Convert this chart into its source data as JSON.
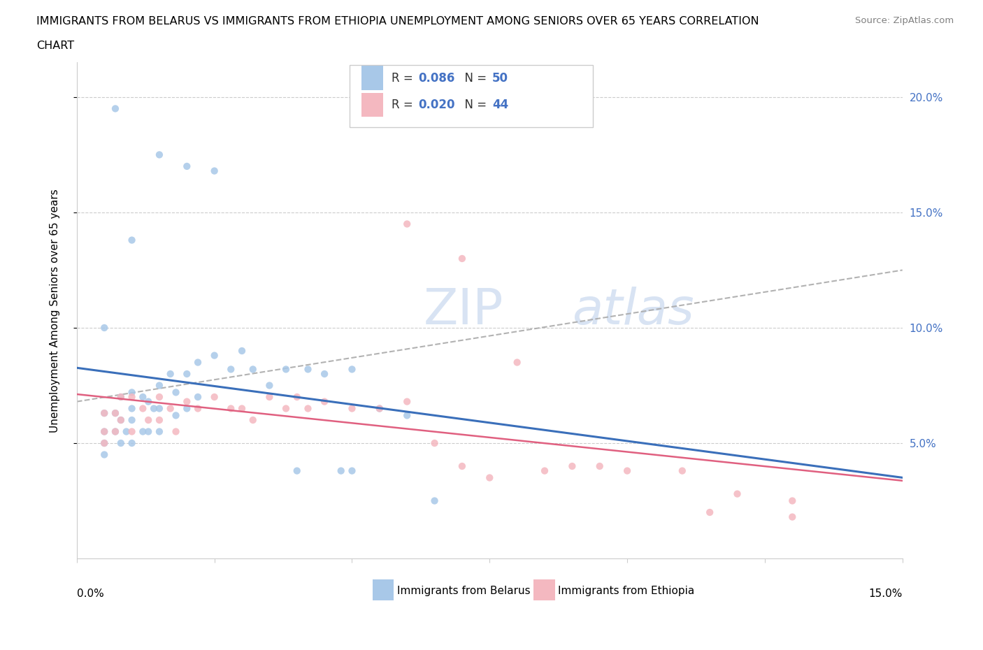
{
  "title_line1": "IMMIGRANTS FROM BELARUS VS IMMIGRANTS FROM ETHIOPIA UNEMPLOYMENT AMONG SENIORS OVER 65 YEARS CORRELATION",
  "title_line2": "CHART",
  "source_text": "Source: ZipAtlas.com",
  "ylabel": "Unemployment Among Seniors over 65 years",
  "ylabel_right_ticks": [
    "20.0%",
    "15.0%",
    "10.0%",
    "5.0%"
  ],
  "ylabel_right_values": [
    0.2,
    0.15,
    0.1,
    0.05
  ],
  "xlim": [
    0.0,
    0.15
  ],
  "ylim": [
    0.0,
    0.215
  ],
  "belarus_R": 0.086,
  "belarus_N": 50,
  "ethiopia_R": 0.02,
  "ethiopia_N": 44,
  "belarus_color": "#a8c8e8",
  "ethiopia_color": "#f4b8c0",
  "belarus_line_color": "#3a6fba",
  "ethiopia_line_color": "#e06080",
  "dashed_line_color": "#aaaaaa",
  "watermark_color": "#d0dff0",
  "belarus_x": [
    0.005,
    0.005,
    0.005,
    0.005,
    0.007,
    0.007,
    0.008,
    0.008,
    0.008,
    0.009,
    0.01,
    0.01,
    0.01,
    0.01,
    0.012,
    0.012,
    0.013,
    0.013,
    0.014,
    0.015,
    0.015,
    0.015,
    0.017,
    0.018,
    0.018,
    0.02,
    0.02,
    0.022,
    0.022,
    0.025,
    0.028,
    0.03,
    0.032,
    0.035,
    0.038,
    0.04,
    0.042,
    0.045,
    0.048,
    0.05,
    0.05,
    0.055,
    0.06,
    0.065,
    0.01,
    0.015,
    0.02,
    0.025,
    0.007,
    0.005
  ],
  "belarus_y": [
    0.063,
    0.055,
    0.05,
    0.045,
    0.063,
    0.055,
    0.07,
    0.06,
    0.05,
    0.055,
    0.072,
    0.065,
    0.06,
    0.05,
    0.07,
    0.055,
    0.068,
    0.055,
    0.065,
    0.075,
    0.065,
    0.055,
    0.08,
    0.072,
    0.062,
    0.08,
    0.065,
    0.085,
    0.07,
    0.088,
    0.082,
    0.09,
    0.082,
    0.075,
    0.082,
    0.038,
    0.082,
    0.08,
    0.038,
    0.082,
    0.038,
    0.065,
    0.062,
    0.025,
    0.138,
    0.175,
    0.17,
    0.168,
    0.195,
    0.1
  ],
  "ethiopia_x": [
    0.005,
    0.005,
    0.005,
    0.007,
    0.007,
    0.008,
    0.008,
    0.01,
    0.01,
    0.012,
    0.013,
    0.015,
    0.015,
    0.017,
    0.018,
    0.02,
    0.022,
    0.025,
    0.028,
    0.03,
    0.032,
    0.035,
    0.038,
    0.04,
    0.042,
    0.045,
    0.05,
    0.055,
    0.06,
    0.065,
    0.07,
    0.075,
    0.08,
    0.085,
    0.09,
    0.095,
    0.1,
    0.11,
    0.12,
    0.13,
    0.06,
    0.07,
    0.115,
    0.13
  ],
  "ethiopia_y": [
    0.063,
    0.055,
    0.05,
    0.063,
    0.055,
    0.07,
    0.06,
    0.07,
    0.055,
    0.065,
    0.06,
    0.07,
    0.06,
    0.065,
    0.055,
    0.068,
    0.065,
    0.07,
    0.065,
    0.065,
    0.06,
    0.07,
    0.065,
    0.07,
    0.065,
    0.068,
    0.065,
    0.065,
    0.068,
    0.05,
    0.04,
    0.035,
    0.085,
    0.038,
    0.04,
    0.04,
    0.038,
    0.038,
    0.028,
    0.025,
    0.145,
    0.13,
    0.02,
    0.018
  ]
}
